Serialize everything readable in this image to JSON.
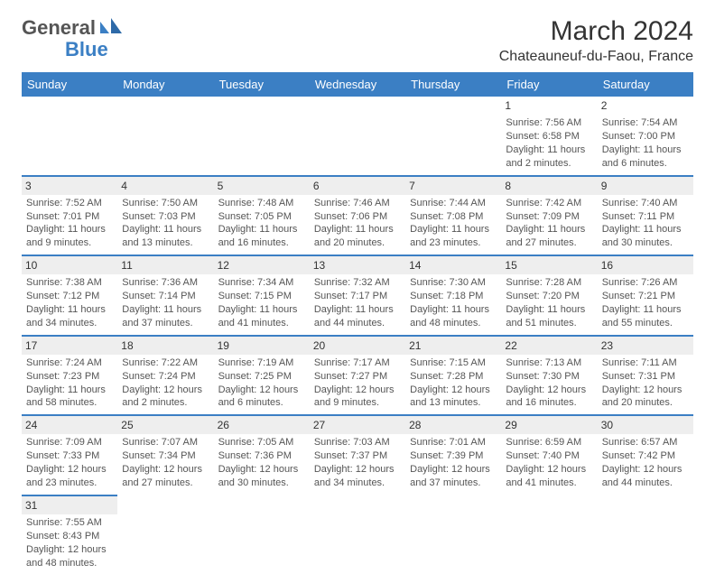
{
  "logo": {
    "general": "General",
    "blue": "Blue"
  },
  "title": "March 2024",
  "location": "Chateauneuf-du-Faou, France",
  "colors": {
    "header_bg": "#3b7fc4",
    "header_fg": "#ffffff",
    "daynum_bg": "#eeeeee",
    "text": "#555555",
    "body_bg": "#ffffff"
  },
  "fonts": {
    "title_size": 30,
    "subtitle_size": 16,
    "header_size": 13,
    "cell_size": 11
  },
  "days": [
    "Sunday",
    "Monday",
    "Tuesday",
    "Wednesday",
    "Thursday",
    "Friday",
    "Saturday"
  ],
  "weeks": [
    [
      null,
      null,
      null,
      null,
      null,
      {
        "n": "1",
        "sr": "Sunrise: 7:56 AM",
        "ss": "Sunset: 6:58 PM",
        "d1": "Daylight: 11 hours",
        "d2": "and 2 minutes."
      },
      {
        "n": "2",
        "sr": "Sunrise: 7:54 AM",
        "ss": "Sunset: 7:00 PM",
        "d1": "Daylight: 11 hours",
        "d2": "and 6 minutes."
      }
    ],
    [
      {
        "n": "3",
        "sr": "Sunrise: 7:52 AM",
        "ss": "Sunset: 7:01 PM",
        "d1": "Daylight: 11 hours",
        "d2": "and 9 minutes."
      },
      {
        "n": "4",
        "sr": "Sunrise: 7:50 AM",
        "ss": "Sunset: 7:03 PM",
        "d1": "Daylight: 11 hours",
        "d2": "and 13 minutes."
      },
      {
        "n": "5",
        "sr": "Sunrise: 7:48 AM",
        "ss": "Sunset: 7:05 PM",
        "d1": "Daylight: 11 hours",
        "d2": "and 16 minutes."
      },
      {
        "n": "6",
        "sr": "Sunrise: 7:46 AM",
        "ss": "Sunset: 7:06 PM",
        "d1": "Daylight: 11 hours",
        "d2": "and 20 minutes."
      },
      {
        "n": "7",
        "sr": "Sunrise: 7:44 AM",
        "ss": "Sunset: 7:08 PM",
        "d1": "Daylight: 11 hours",
        "d2": "and 23 minutes."
      },
      {
        "n": "8",
        "sr": "Sunrise: 7:42 AM",
        "ss": "Sunset: 7:09 PM",
        "d1": "Daylight: 11 hours",
        "d2": "and 27 minutes."
      },
      {
        "n": "9",
        "sr": "Sunrise: 7:40 AM",
        "ss": "Sunset: 7:11 PM",
        "d1": "Daylight: 11 hours",
        "d2": "and 30 minutes."
      }
    ],
    [
      {
        "n": "10",
        "sr": "Sunrise: 7:38 AM",
        "ss": "Sunset: 7:12 PM",
        "d1": "Daylight: 11 hours",
        "d2": "and 34 minutes."
      },
      {
        "n": "11",
        "sr": "Sunrise: 7:36 AM",
        "ss": "Sunset: 7:14 PM",
        "d1": "Daylight: 11 hours",
        "d2": "and 37 minutes."
      },
      {
        "n": "12",
        "sr": "Sunrise: 7:34 AM",
        "ss": "Sunset: 7:15 PM",
        "d1": "Daylight: 11 hours",
        "d2": "and 41 minutes."
      },
      {
        "n": "13",
        "sr": "Sunrise: 7:32 AM",
        "ss": "Sunset: 7:17 PM",
        "d1": "Daylight: 11 hours",
        "d2": "and 44 minutes."
      },
      {
        "n": "14",
        "sr": "Sunrise: 7:30 AM",
        "ss": "Sunset: 7:18 PM",
        "d1": "Daylight: 11 hours",
        "d2": "and 48 minutes."
      },
      {
        "n": "15",
        "sr": "Sunrise: 7:28 AM",
        "ss": "Sunset: 7:20 PM",
        "d1": "Daylight: 11 hours",
        "d2": "and 51 minutes."
      },
      {
        "n": "16",
        "sr": "Sunrise: 7:26 AM",
        "ss": "Sunset: 7:21 PM",
        "d1": "Daylight: 11 hours",
        "d2": "and 55 minutes."
      }
    ],
    [
      {
        "n": "17",
        "sr": "Sunrise: 7:24 AM",
        "ss": "Sunset: 7:23 PM",
        "d1": "Daylight: 11 hours",
        "d2": "and 58 minutes."
      },
      {
        "n": "18",
        "sr": "Sunrise: 7:22 AM",
        "ss": "Sunset: 7:24 PM",
        "d1": "Daylight: 12 hours",
        "d2": "and 2 minutes."
      },
      {
        "n": "19",
        "sr": "Sunrise: 7:19 AM",
        "ss": "Sunset: 7:25 PM",
        "d1": "Daylight: 12 hours",
        "d2": "and 6 minutes."
      },
      {
        "n": "20",
        "sr": "Sunrise: 7:17 AM",
        "ss": "Sunset: 7:27 PM",
        "d1": "Daylight: 12 hours",
        "d2": "and 9 minutes."
      },
      {
        "n": "21",
        "sr": "Sunrise: 7:15 AM",
        "ss": "Sunset: 7:28 PM",
        "d1": "Daylight: 12 hours",
        "d2": "and 13 minutes."
      },
      {
        "n": "22",
        "sr": "Sunrise: 7:13 AM",
        "ss": "Sunset: 7:30 PM",
        "d1": "Daylight: 12 hours",
        "d2": "and 16 minutes."
      },
      {
        "n": "23",
        "sr": "Sunrise: 7:11 AM",
        "ss": "Sunset: 7:31 PM",
        "d1": "Daylight: 12 hours",
        "d2": "and 20 minutes."
      }
    ],
    [
      {
        "n": "24",
        "sr": "Sunrise: 7:09 AM",
        "ss": "Sunset: 7:33 PM",
        "d1": "Daylight: 12 hours",
        "d2": "and 23 minutes."
      },
      {
        "n": "25",
        "sr": "Sunrise: 7:07 AM",
        "ss": "Sunset: 7:34 PM",
        "d1": "Daylight: 12 hours",
        "d2": "and 27 minutes."
      },
      {
        "n": "26",
        "sr": "Sunrise: 7:05 AM",
        "ss": "Sunset: 7:36 PM",
        "d1": "Daylight: 12 hours",
        "d2": "and 30 minutes."
      },
      {
        "n": "27",
        "sr": "Sunrise: 7:03 AM",
        "ss": "Sunset: 7:37 PM",
        "d1": "Daylight: 12 hours",
        "d2": "and 34 minutes."
      },
      {
        "n": "28",
        "sr": "Sunrise: 7:01 AM",
        "ss": "Sunset: 7:39 PM",
        "d1": "Daylight: 12 hours",
        "d2": "and 37 minutes."
      },
      {
        "n": "29",
        "sr": "Sunrise: 6:59 AM",
        "ss": "Sunset: 7:40 PM",
        "d1": "Daylight: 12 hours",
        "d2": "and 41 minutes."
      },
      {
        "n": "30",
        "sr": "Sunrise: 6:57 AM",
        "ss": "Sunset: 7:42 PM",
        "d1": "Daylight: 12 hours",
        "d2": "and 44 minutes."
      }
    ],
    [
      {
        "n": "31",
        "sr": "Sunrise: 7:55 AM",
        "ss": "Sunset: 8:43 PM",
        "d1": "Daylight: 12 hours",
        "d2": "and 48 minutes."
      },
      null,
      null,
      null,
      null,
      null,
      null
    ]
  ]
}
